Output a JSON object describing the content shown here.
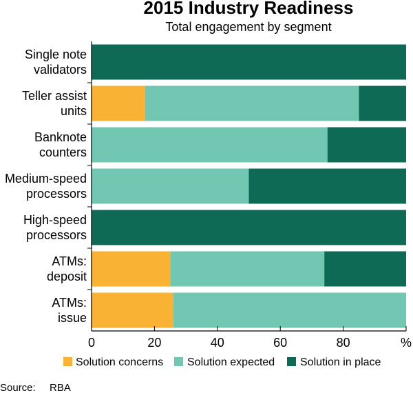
{
  "chart_data": {
    "type": "bar",
    "orientation": "horizontal",
    "stacked": true,
    "title": "2015 Industry Readiness",
    "subtitle": "Total engagement by segment",
    "categories": [
      [
        "Single note",
        "validators"
      ],
      [
        "Teller assist",
        "units"
      ],
      [
        "Banknote",
        "counters"
      ],
      [
        "Medium-speed",
        "processors"
      ],
      [
        "High-speed",
        "processors"
      ],
      [
        "ATMs:",
        "deposit"
      ],
      [
        "ATMs:",
        "issue"
      ]
    ],
    "series": [
      {
        "name": "Solution concerns",
        "color": "#F9B233",
        "values": [
          0,
          17,
          0,
          0,
          0,
          25,
          26
        ]
      },
      {
        "name": "Solution expected",
        "color": "#71C7B1",
        "values": [
          0,
          68,
          75,
          50,
          0,
          49,
          74
        ]
      },
      {
        "name": "Solution in place",
        "color": "#0E6A55",
        "values": [
          100,
          15,
          25,
          50,
          100,
          26,
          0
        ]
      }
    ],
    "xlim": [
      0,
      100
    ],
    "xticks": [
      "0",
      "20",
      "40",
      "60",
      "80"
    ],
    "xunit": "%",
    "legend_position": "bottom",
    "grid": false
  },
  "source": {
    "label": "Source:",
    "value": "RBA"
  }
}
